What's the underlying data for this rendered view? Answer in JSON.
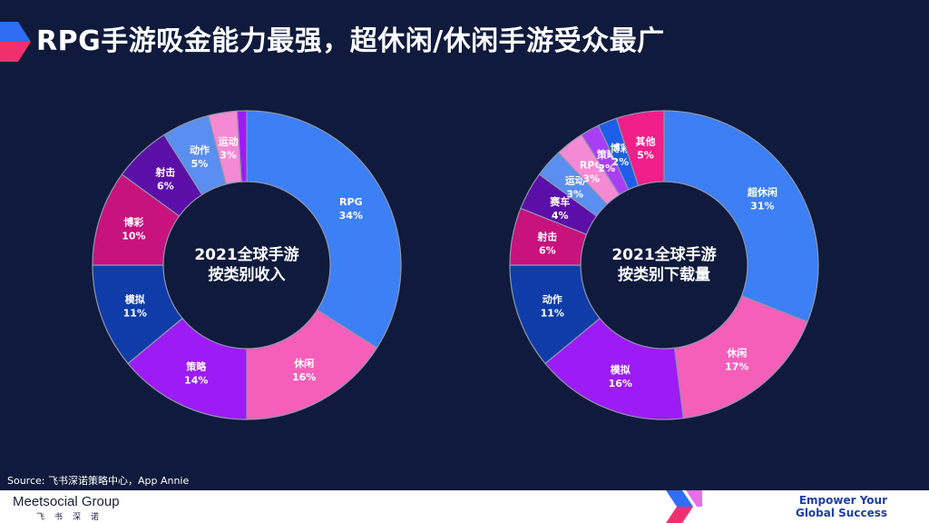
{
  "header": {
    "title": "RPG手游吸金能力最强，超休闲/休闲手游受众最广"
  },
  "footer": {
    "source": "Source: 飞书深诺策略中心，App Annie",
    "brand": "Meetsocial Group",
    "brand_sub": "飞书深诺",
    "slogan_line1": "Empower Your",
    "slogan_line2": "Global Success"
  },
  "chart_data": [
    {
      "type": "pie",
      "title_lines": [
        "2021全球手游",
        "按类别收入"
      ],
      "slices": [
        {
          "label": "RPG",
          "value": 34,
          "display": "34%",
          "color": "#3d7ff5"
        },
        {
          "label": "休闲",
          "value": 16,
          "display": "16%",
          "color": "#f55fb9"
        },
        {
          "label": "策略",
          "value": 14,
          "display": "14%",
          "color": "#9d1bf5"
        },
        {
          "label": "模拟",
          "value": 11,
          "display": "11%",
          "color": "#0f3ca8"
        },
        {
          "label": "博彩",
          "value": 10,
          "display": "10%",
          "color": "#c8127d"
        },
        {
          "label": "射击",
          "value": 6,
          "display": "6%",
          "color": "#5c0fa8"
        },
        {
          "label": "动作",
          "value": 5,
          "display": "5%",
          "color": "#5a8ef0"
        },
        {
          "label": "运动",
          "value": 3,
          "display": "3%",
          "color": "#f58ad4"
        },
        {
          "label": "",
          "value": 1,
          "display": "",
          "color": "#9d1bf5"
        }
      ]
    },
    {
      "type": "pie",
      "title_lines": [
        "2021全球手游",
        "按类别下载量"
      ],
      "slices": [
        {
          "label": "超休闲",
          "value": 31,
          "display": "31%",
          "color": "#3d7ff5"
        },
        {
          "label": "休闲",
          "value": 17,
          "display": "17%",
          "color": "#f55fb9"
        },
        {
          "label": "模拟",
          "value": 16,
          "display": "16%",
          "color": "#9d1bf5"
        },
        {
          "label": "动作",
          "value": 11,
          "display": "11%",
          "color": "#0f3ca8"
        },
        {
          "label": "射击",
          "value": 6,
          "display": "6%",
          "color": "#c8127d"
        },
        {
          "label": "赛车",
          "value": 4,
          "display": "4%",
          "color": "#5c0fa8"
        },
        {
          "label": "运动",
          "value": 3,
          "display": "3%",
          "color": "#5a8ef0"
        },
        {
          "label": "RPG",
          "value": 3,
          "display": "3%",
          "color": "#f58ad4"
        },
        {
          "label": "策略",
          "value": 2,
          "display": "2%",
          "color": "#a93ff5"
        },
        {
          "label": "博彩",
          "value": 2,
          "display": "2%",
          "color": "#1e5ee8"
        },
        {
          "label": "其他",
          "value": 5,
          "display": "5%",
          "color": "#f01f8a"
        }
      ]
    }
  ]
}
